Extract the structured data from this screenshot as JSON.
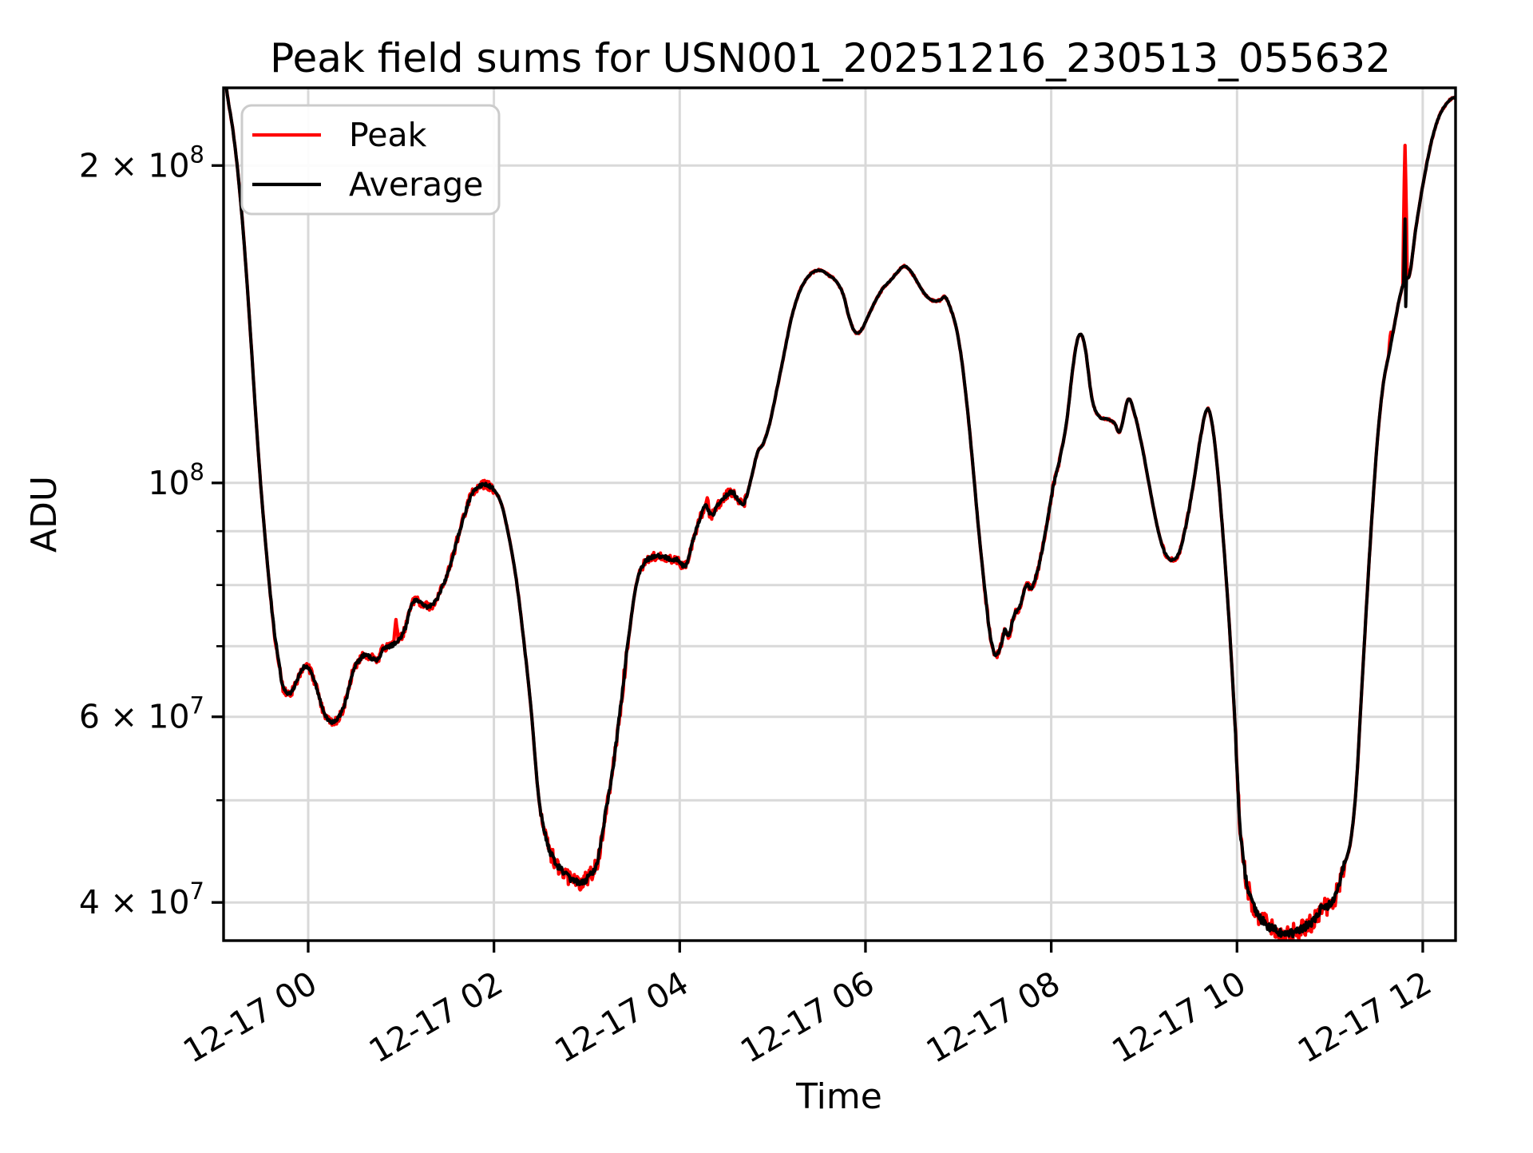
{
  "window": {
    "background": "#ffffff",
    "figure_type": "matplotlib-line-plot"
  },
  "chart_data": {
    "type": "line",
    "title": "Peak field sums for USN001_20251216_230513_055632",
    "xlabel": "Time",
    "ylabel": "ADU",
    "grid": true,
    "grid_color": "#d9d9d9",
    "legend_position": "upper-left",
    "legend": [
      {
        "label": "Peak",
        "color": "#ff0000"
      },
      {
        "label": "Average",
        "color": "#000000"
      }
    ],
    "x_axis": {
      "unit": "hours relative to 2025-12-17 00:00",
      "start_hours": -0.911,
      "end_hours": 12.353,
      "ticks": [
        {
          "hours": 0,
          "label": "12-17 00"
        },
        {
          "hours": 2,
          "label": "12-17 02"
        },
        {
          "hours": 4,
          "label": "12-17 04"
        },
        {
          "hours": 6,
          "label": "12-17 06"
        },
        {
          "hours": 8,
          "label": "12-17 08"
        },
        {
          "hours": 10,
          "label": "12-17 10"
        },
        {
          "hours": 12,
          "label": "12-17 12"
        }
      ]
    },
    "y_axis": {
      "scale": "log",
      "min": 36800000,
      "max": 237000000,
      "labeled_ticks": [
        {
          "value": 200000000,
          "mantissa": "2 × 10",
          "exponent": "8"
        },
        {
          "value": 100000000,
          "mantissa": "10",
          "exponent": "8"
        },
        {
          "value": 60000000,
          "mantissa": "6 × 10",
          "exponent": "7"
        },
        {
          "value": 40000000,
          "mantissa": "4 × 10",
          "exponent": "7"
        }
      ],
      "minor_ticks": [
        50000000,
        70000000,
        80000000,
        90000000
      ],
      "grid_values": [
        40000000,
        50000000,
        60000000,
        70000000,
        80000000,
        90000000,
        100000000,
        200000000
      ]
    },
    "series": {
      "value_unit": 10000000,
      "average_control_points": [
        [
          -0.911,
          25
        ],
        [
          -0.87,
          23.3
        ],
        [
          -0.82,
          21.9
        ],
        [
          -0.77,
          20.2
        ],
        [
          -0.72,
          18.2
        ],
        [
          -0.67,
          16.0
        ],
        [
          -0.62,
          13.8
        ],
        [
          -0.57,
          11.8
        ],
        [
          -0.52,
          10.2
        ],
        [
          -0.47,
          9.0
        ],
        [
          -0.42,
          8.05
        ],
        [
          -0.37,
          7.3
        ],
        [
          -0.33,
          6.9
        ],
        [
          -0.28,
          6.45
        ],
        [
          -0.24,
          6.33
        ],
        [
          -0.18,
          6.33
        ],
        [
          -0.12,
          6.5
        ],
        [
          -0.05,
          6.68
        ],
        [
          0.0,
          6.67
        ],
        [
          0.05,
          6.55
        ],
        [
          0.1,
          6.35
        ],
        [
          0.15,
          6.12
        ],
        [
          0.21,
          5.97
        ],
        [
          0.27,
          5.94
        ],
        [
          0.33,
          6.0
        ],
        [
          0.4,
          6.2
        ],
        [
          0.49,
          6.65
        ],
        [
          0.56,
          6.8
        ],
        [
          0.62,
          6.87
        ],
        [
          0.68,
          6.82
        ],
        [
          0.75,
          6.8
        ],
        [
          0.81,
          6.97
        ],
        [
          0.88,
          7.0
        ],
        [
          0.94,
          7.05
        ],
        [
          1.0,
          7.15
        ],
        [
          1.05,
          7.3
        ],
        [
          1.1,
          7.6
        ],
        [
          1.15,
          7.73
        ],
        [
          1.22,
          7.7
        ],
        [
          1.3,
          7.63
        ],
        [
          1.38,
          7.75
        ],
        [
          1.44,
          7.95
        ],
        [
          1.52,
          8.3
        ],
        [
          1.6,
          8.8
        ],
        [
          1.68,
          9.3
        ],
        [
          1.76,
          9.75
        ],
        [
          1.84,
          9.93
        ],
        [
          1.92,
          9.95
        ],
        [
          2.0,
          9.85
        ],
        [
          2.08,
          9.55
        ],
        [
          2.16,
          8.9
        ],
        [
          2.24,
          8.1
        ],
        [
          2.32,
          7.1
        ],
        [
          2.4,
          6.1
        ],
        [
          2.48,
          5.05
        ],
        [
          2.56,
          4.6
        ],
        [
          2.64,
          4.4
        ],
        [
          2.74,
          4.28
        ],
        [
          2.84,
          4.2
        ],
        [
          2.94,
          4.18
        ],
        [
          3.04,
          4.25
        ],
        [
          3.12,
          4.4
        ],
        [
          3.2,
          4.85
        ],
        [
          3.28,
          5.35
        ],
        [
          3.36,
          6.1
        ],
        [
          3.44,
          7.0
        ],
        [
          3.52,
          7.9
        ],
        [
          3.6,
          8.35
        ],
        [
          3.7,
          8.5
        ],
        [
          3.8,
          8.52
        ],
        [
          3.9,
          8.47
        ],
        [
          3.98,
          8.45
        ],
        [
          4.06,
          8.35
        ],
        [
          4.14,
          8.8
        ],
        [
          4.22,
          9.25
        ],
        [
          4.28,
          9.5
        ],
        [
          4.34,
          9.32
        ],
        [
          4.42,
          9.55
        ],
        [
          4.5,
          9.73
        ],
        [
          4.57,
          9.8
        ],
        [
          4.64,
          9.62
        ],
        [
          4.7,
          9.6
        ],
        [
          4.77,
          10.1
        ],
        [
          4.84,
          10.7
        ],
        [
          4.9,
          10.9
        ],
        [
          4.97,
          11.4
        ],
        [
          5.04,
          12.2
        ],
        [
          5.12,
          13.2
        ],
        [
          5.2,
          14.3
        ],
        [
          5.28,
          15.1
        ],
        [
          5.36,
          15.6
        ],
        [
          5.44,
          15.85
        ],
        [
          5.52,
          15.9
        ],
        [
          5.6,
          15.75
        ],
        [
          5.68,
          15.55
        ],
        [
          5.76,
          15.1
        ],
        [
          5.83,
          14.3
        ],
        [
          5.89,
          13.9
        ],
        [
          5.95,
          13.95
        ],
        [
          6.03,
          14.4
        ],
        [
          6.11,
          14.9
        ],
        [
          6.19,
          15.3
        ],
        [
          6.28,
          15.6
        ],
        [
          6.36,
          15.9
        ],
        [
          6.42,
          16.05
        ],
        [
          6.48,
          15.9
        ],
        [
          6.56,
          15.5
        ],
        [
          6.64,
          15.1
        ],
        [
          6.72,
          14.9
        ],
        [
          6.8,
          14.9
        ],
        [
          6.86,
          15.0
        ],
        [
          6.92,
          14.6
        ],
        [
          6.98,
          14.0
        ],
        [
          7.04,
          13.0
        ],
        [
          7.1,
          11.7
        ],
        [
          7.16,
          10.3
        ],
        [
          7.22,
          9.0
        ],
        [
          7.28,
          8.0
        ],
        [
          7.34,
          7.2
        ],
        [
          7.4,
          6.87
        ],
        [
          7.46,
          7.0
        ],
        [
          7.5,
          7.25
        ],
        [
          7.54,
          7.15
        ],
        [
          7.6,
          7.5
        ],
        [
          7.66,
          7.62
        ],
        [
          7.73,
          8.0
        ],
        [
          7.79,
          7.95
        ],
        [
          7.86,
          8.3
        ],
        [
          7.94,
          9.0
        ],
        [
          8.02,
          9.9
        ],
        [
          8.1,
          10.6
        ],
        [
          8.17,
          11.5
        ],
        [
          8.24,
          13.0
        ],
        [
          8.3,
          13.8
        ],
        [
          8.36,
          13.5
        ],
        [
          8.44,
          12.0
        ],
        [
          8.52,
          11.55
        ],
        [
          8.6,
          11.5
        ],
        [
          8.68,
          11.4
        ],
        [
          8.74,
          11.2
        ],
        [
          8.83,
          12.0
        ],
        [
          8.9,
          11.6
        ],
        [
          8.98,
          10.8
        ],
        [
          9.06,
          9.9
        ],
        [
          9.14,
          9.1
        ],
        [
          9.22,
          8.6
        ],
        [
          9.3,
          8.45
        ],
        [
          9.38,
          8.6
        ],
        [
          9.46,
          9.2
        ],
        [
          9.54,
          10.1
        ],
        [
          9.62,
          11.2
        ],
        [
          9.68,
          11.75
        ],
        [
          9.73,
          11.4
        ],
        [
          9.79,
          10.3
        ],
        [
          9.85,
          8.9
        ],
        [
          9.91,
          7.5
        ],
        [
          9.97,
          6.1
        ],
        [
          10.03,
          4.75
        ],
        [
          10.09,
          4.25
        ],
        [
          10.16,
          4.0
        ],
        [
          10.24,
          3.88
        ],
        [
          10.33,
          3.8
        ],
        [
          10.43,
          3.76
        ],
        [
          10.53,
          3.73
        ],
        [
          10.63,
          3.75
        ],
        [
          10.73,
          3.79
        ],
        [
          10.83,
          3.85
        ],
        [
          10.9,
          3.94
        ],
        [
          10.98,
          3.97
        ],
        [
          11.06,
          4.05
        ],
        [
          11.14,
          4.3
        ],
        [
          11.22,
          4.55
        ],
        [
          11.28,
          5.1
        ],
        [
          11.34,
          6.3
        ],
        [
          11.4,
          7.8
        ],
        [
          11.46,
          9.5
        ],
        [
          11.52,
          11.2
        ],
        [
          11.58,
          12.5
        ],
        [
          11.64,
          13.3
        ],
        [
          11.7,
          14.2
        ],
        [
          11.76,
          15.1
        ],
        [
          11.81,
          15.6
        ],
        [
          11.86,
          15.8
        ],
        [
          11.92,
          17.3
        ],
        [
          11.98,
          18.7
        ],
        [
          12.04,
          20.0
        ],
        [
          12.1,
          21.2
        ],
        [
          12.17,
          22.2
        ],
        [
          12.24,
          22.8
        ],
        [
          12.31,
          23.15
        ],
        [
          12.353,
          23.2
        ]
      ],
      "peak_spikes": [
        {
          "t": 0.945,
          "v": 7.42
        },
        {
          "t": 4.295,
          "v": 9.68
        },
        {
          "t": 11.655,
          "v": 13.9
        },
        {
          "t": 11.812,
          "v": 20.9
        }
      ],
      "average_spike_events": [
        {
          "t": 11.812,
          "up": 17.8,
          "down": 14.7
        }
      ],
      "noise_zones": [
        {
          "from": -0.4,
          "to": 2.0,
          "avg": 0.004,
          "peak": 0.01
        },
        {
          "from": 2.5,
          "to": 3.45,
          "avg": 0.007,
          "peak": 0.018
        },
        {
          "from": 3.55,
          "to": 4.72,
          "avg": 0.004,
          "peak": 0.01
        },
        {
          "from": 7.28,
          "to": 8.12,
          "avg": 0.003,
          "peak": 0.008
        },
        {
          "from": 9.18,
          "to": 9.5,
          "avg": 0.002,
          "peak": 0.005
        },
        {
          "from": 9.98,
          "to": 11.16,
          "avg": 0.009,
          "peak": 0.022
        }
      ],
      "base_noise": {
        "avg": 0.0008,
        "peak": 0.0022
      }
    }
  }
}
